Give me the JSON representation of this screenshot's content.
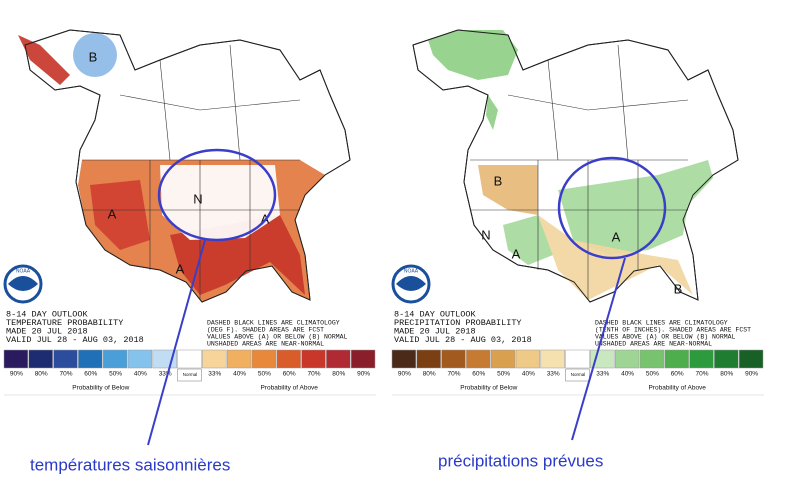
{
  "panels": [
    {
      "outlook": "8-14 DAY OUTLOOK",
      "product": "TEMPERATURE PROBABILITY",
      "made": "MADE   20 JUL 2018",
      "valid": "VALID   JUL 28 - AUG 03, 2018",
      "notes": [
        "DASHED BLACK LINES ARE CLIMATOLOGY",
        "(DEG F). SHADED AREAS ARE FCST",
        "VALUES ABOVE (A) OR BELOW (B) NORMAL",
        "UNSHADED AREAS ARE NEAR-NORMAL"
      ],
      "logo": "NOAA",
      "legend": {
        "labels": [
          "90%",
          "80%",
          "70%",
          "60%",
          "50%",
          "40%",
          "33%",
          "33%",
          "40%",
          "50%",
          "60%",
          "70%",
          "80%",
          "90%"
        ],
        "normal": "Normal",
        "colors": [
          "#2a1a5e",
          "#1d2c70",
          "#2c4c9c",
          "#1f70b6",
          "#4a9fd8",
          "#86c3ec",
          "#c0ddf4",
          "#ffffff",
          "#f7d49a",
          "#f0b060",
          "#e8883a",
          "#d95d2a",
          "#c8372a",
          "#b02a34",
          "#8a1e2a"
        ],
        "below": "Probability of Below",
        "above": "Probability of Above"
      },
      "map_labels": [
        "A",
        "A",
        "A",
        "B",
        "N"
      ],
      "caption": "températures saisonnières"
    },
    {
      "outlook": "8-14 DAY OUTLOOK",
      "product": "PRECIPITATION PROBABILITY",
      "made": "MADE   20 JUL 2018",
      "valid": "VALID   JUL 28 - AUG 03, 2018",
      "notes": [
        "DASHED BLACK LINES ARE CLIMATOLOGY",
        "(TENTH OF INCHES). SHADED AREAS ARE FCST",
        "VALUES ABOVE (A) OR BELOW (B) NORMAL",
        "UNSHADED AREAS ARE NEAR-NORMAL"
      ],
      "logo": "NOAA",
      "legend": {
        "labels": [
          "90%",
          "80%",
          "70%",
          "60%",
          "50%",
          "40%",
          "33%",
          "33%",
          "40%",
          "50%",
          "60%",
          "70%",
          "80%",
          "90%"
        ],
        "normal": "Normal",
        "colors": [
          "#4b2a1a",
          "#7a3f12",
          "#a35a1e",
          "#c77a32",
          "#d9a050",
          "#efca86",
          "#f5e1b0",
          "#ffffff",
          "#c9e8c0",
          "#9fd594",
          "#78c36e",
          "#4eae4e",
          "#2e9a3e",
          "#1f7d32",
          "#186026"
        ],
        "below": "Probability of Below",
        "above": "Probability of Above"
      },
      "map_labels": [
        "A",
        "A",
        "B",
        "B",
        "N"
      ],
      "caption": "précipitations prévues"
    }
  ]
}
